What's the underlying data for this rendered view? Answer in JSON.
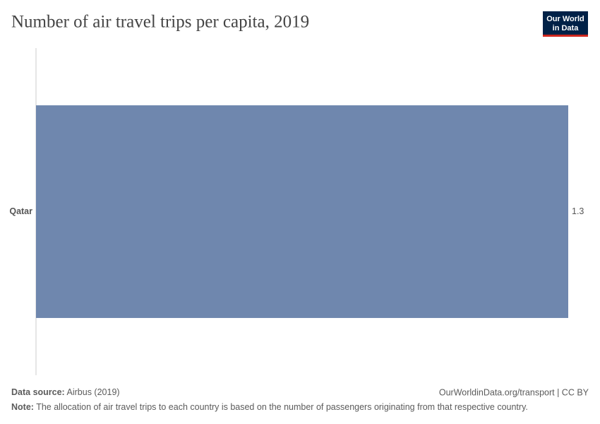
{
  "chart_data": {
    "type": "bar",
    "orientation": "horizontal",
    "title": "Number of air travel trips per capita, 2019",
    "categories": [
      "Qatar"
    ],
    "values": [
      1.3
    ],
    "color": "#6f87ae"
  },
  "logo": [
    "Our World",
    "in Data"
  ],
  "footer": {
    "source_label": "Data source:",
    "source": "Airbus (2019)",
    "link": "OurWorldinData.org/transport | CC BY",
    "note_label": "Note:",
    "note": "The allocation of air travel trips to each country is based on the number of passengers originating from that respective country."
  }
}
